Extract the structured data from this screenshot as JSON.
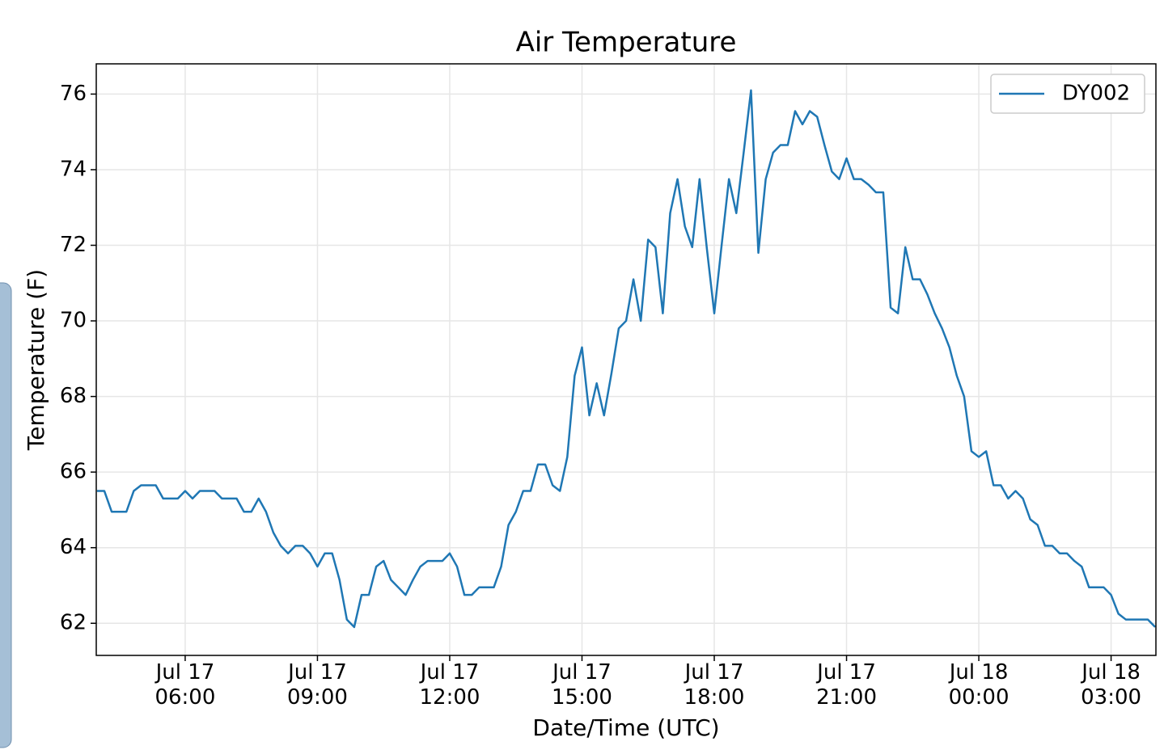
{
  "chart_data": {
    "type": "line",
    "title": "Air Temperature",
    "x_label": "Date/Time (UTC)",
    "y_label": "Temperature (F)",
    "x": [
      "Jul 17 04:00",
      "Jul 17 04:10",
      "Jul 17 04:20",
      "Jul 17 04:30",
      "Jul 17 04:40",
      "Jul 17 04:50",
      "Jul 17 05:00",
      "Jul 17 05:10",
      "Jul 17 05:20",
      "Jul 17 05:30",
      "Jul 17 05:40",
      "Jul 17 05:50",
      "Jul 17 06:00",
      "Jul 17 06:10",
      "Jul 17 06:20",
      "Jul 17 06:30",
      "Jul 17 06:40",
      "Jul 17 06:50",
      "Jul 17 07:00",
      "Jul 17 07:10",
      "Jul 17 07:20",
      "Jul 17 07:30",
      "Jul 17 07:40",
      "Jul 17 07:50",
      "Jul 17 08:00",
      "Jul 17 08:10",
      "Jul 17 08:20",
      "Jul 17 08:30",
      "Jul 17 08:40",
      "Jul 17 08:50",
      "Jul 17 09:00",
      "Jul 17 09:10",
      "Jul 17 09:20",
      "Jul 17 09:30",
      "Jul 17 09:40",
      "Jul 17 09:50",
      "Jul 17 10:00",
      "Jul 17 10:10",
      "Jul 17 10:20",
      "Jul 17 10:30",
      "Jul 17 10:40",
      "Jul 17 10:50",
      "Jul 17 11:00",
      "Jul 17 11:10",
      "Jul 17 11:20",
      "Jul 17 11:30",
      "Jul 17 11:40",
      "Jul 17 11:50",
      "Jul 17 12:00",
      "Jul 17 12:10",
      "Jul 17 12:20",
      "Jul 17 12:30",
      "Jul 17 12:40",
      "Jul 17 12:50",
      "Jul 17 13:00",
      "Jul 17 13:10",
      "Jul 17 13:20",
      "Jul 17 13:30",
      "Jul 17 13:40",
      "Jul 17 13:50",
      "Jul 17 14:00",
      "Jul 17 14:10",
      "Jul 17 14:20",
      "Jul 17 14:30",
      "Jul 17 14:40",
      "Jul 17 14:50",
      "Jul 17 15:00",
      "Jul 17 15:10",
      "Jul 17 15:20",
      "Jul 17 15:30",
      "Jul 17 15:40",
      "Jul 17 15:50",
      "Jul 17 16:00",
      "Jul 17 16:10",
      "Jul 17 16:20",
      "Jul 17 16:30",
      "Jul 17 16:40",
      "Jul 17 16:50",
      "Jul 17 17:00",
      "Jul 17 17:10",
      "Jul 17 17:20",
      "Jul 17 17:30",
      "Jul 17 17:40",
      "Jul 17 17:50",
      "Jul 17 18:00",
      "Jul 17 18:10",
      "Jul 17 18:20",
      "Jul 17 18:30",
      "Jul 17 18:40",
      "Jul 17 18:50",
      "Jul 17 19:00",
      "Jul 17 19:10",
      "Jul 17 19:20",
      "Jul 17 19:30",
      "Jul 17 19:40",
      "Jul 17 19:50",
      "Jul 17 20:00",
      "Jul 17 20:10",
      "Jul 17 20:20",
      "Jul 17 20:30",
      "Jul 17 20:40",
      "Jul 17 20:50",
      "Jul 17 21:00",
      "Jul 17 21:10",
      "Jul 17 21:20",
      "Jul 17 21:30",
      "Jul 17 21:40",
      "Jul 17 21:50",
      "Jul 17 22:00",
      "Jul 17 22:10",
      "Jul 17 22:20",
      "Jul 17 22:30",
      "Jul 17 22:40",
      "Jul 17 22:50",
      "Jul 17 23:00",
      "Jul 17 23:10",
      "Jul 17 23:20",
      "Jul 17 23:30",
      "Jul 17 23:40",
      "Jul 17 23:50",
      "Jul 18 00:00",
      "Jul 18 00:10",
      "Jul 18 00:20",
      "Jul 18 00:30",
      "Jul 18 00:40",
      "Jul 18 00:50",
      "Jul 18 01:00",
      "Jul 18 01:10",
      "Jul 18 01:20",
      "Jul 18 01:30",
      "Jul 18 01:40",
      "Jul 18 01:50",
      "Jul 18 02:00",
      "Jul 18 02:10",
      "Jul 18 02:20",
      "Jul 18 02:30",
      "Jul 18 02:40",
      "Jul 18 02:50",
      "Jul 18 03:00",
      "Jul 18 03:10",
      "Jul 18 03:20",
      "Jul 18 03:30",
      "Jul 18 03:40",
      "Jul 18 03:50",
      "Jul 18 04:00"
    ],
    "series": [
      {
        "name": "DY002",
        "color": "#1f77b4",
        "values": [
          65.5,
          65.5,
          64.95,
          64.95,
          64.95,
          65.5,
          65.65,
          65.65,
          65.65,
          65.3,
          65.3,
          65.3,
          65.5,
          65.3,
          65.5,
          65.5,
          65.5,
          65.3,
          65.3,
          65.3,
          64.95,
          64.95,
          65.3,
          64.95,
          64.4,
          64.05,
          63.85,
          64.05,
          64.05,
          63.85,
          63.5,
          63.85,
          63.85,
          63.15,
          62.1,
          61.9,
          62.75,
          62.75,
          63.5,
          63.65,
          63.15,
          62.95,
          62.75,
          63.15,
          63.5,
          63.65,
          63.65,
          63.65,
          63.85,
          63.5,
          62.75,
          62.75,
          62.95,
          62.95,
          62.95,
          63.5,
          64.6,
          64.95,
          65.5,
          65.5,
          66.2,
          66.2,
          65.65,
          65.5,
          66.4,
          68.55,
          69.3,
          67.5,
          68.35,
          67.5,
          68.6,
          69.8,
          70.0,
          71.1,
          70.0,
          72.15,
          71.95,
          70.2,
          72.85,
          73.75,
          72.5,
          71.95,
          73.75,
          71.9,
          70.2,
          72.0,
          73.75,
          72.85,
          74.45,
          76.1,
          71.8,
          73.75,
          74.45,
          74.65,
          74.65,
          75.55,
          75.2,
          75.55,
          75.4,
          74.65,
          73.95,
          73.75,
          74.3,
          73.75,
          73.75,
          73.6,
          73.4,
          73.4,
          70.35,
          70.2,
          71.95,
          71.1,
          71.1,
          70.7,
          70.2,
          69.8,
          69.3,
          68.55,
          68.0,
          66.55,
          66.4,
          66.55,
          65.65,
          65.65,
          65.3,
          65.5,
          65.3,
          64.75,
          64.6,
          64.05,
          64.05,
          63.85,
          63.85,
          63.65,
          63.5,
          62.95,
          62.95,
          62.95,
          62.75,
          62.25,
          62.1,
          62.1,
          62.1,
          62.1,
          61.9
        ]
      }
    ],
    "xlim": [
      "Jul 17 03:59",
      "Jul 18 04:01"
    ],
    "xticks": [
      {
        "value": "Jul 17 06:00",
        "label": "Jul 17\n06:00"
      },
      {
        "value": "Jul 17 09:00",
        "label": "Jul 17\n09:00"
      },
      {
        "value": "Jul 17 12:00",
        "label": "Jul 17\n12:00"
      },
      {
        "value": "Jul 17 15:00",
        "label": "Jul 17\n15:00"
      },
      {
        "value": "Jul 17 18:00",
        "label": "Jul 17\n18:00"
      },
      {
        "value": "Jul 17 21:00",
        "label": "Jul 17\n21:00"
      },
      {
        "value": "Jul 18 00:00",
        "label": "Jul 18\n00:00"
      },
      {
        "value": "Jul 18 03:00",
        "label": "Jul 18\n03:00"
      }
    ],
    "ylim": [
      61.15,
      76.8
    ],
    "yticks": [
      62,
      64,
      66,
      68,
      70,
      72,
      74,
      76
    ],
    "grid": true,
    "legend": "upper right"
  }
}
